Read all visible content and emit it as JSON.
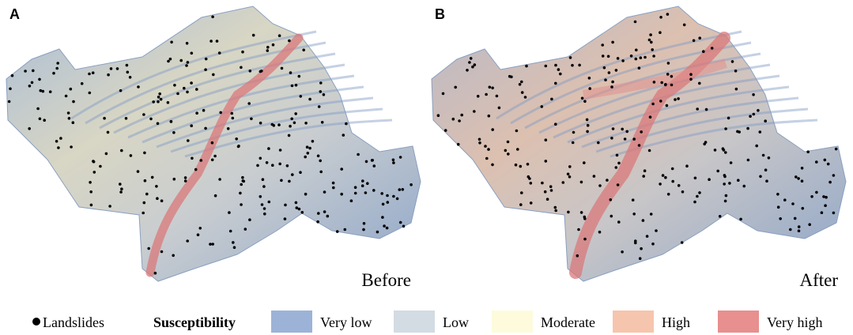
{
  "panels": [
    {
      "label": "A",
      "caption": "Before"
    },
    {
      "label": "B",
      "caption": "After"
    }
  ],
  "legend": {
    "marker_label": "Landslides",
    "title": "Susceptibility",
    "items": [
      {
        "label": "Very low",
        "color": "#9cb3d7"
      },
      {
        "label": "Low",
        "color": "#d3dbe3"
      },
      {
        "label": "Moderate",
        "color": "#fdfbdc"
      },
      {
        "label": "High",
        "color": "#f6c5ae"
      },
      {
        "label": "Very high",
        "color": "#e88f8f"
      }
    ]
  }
}
